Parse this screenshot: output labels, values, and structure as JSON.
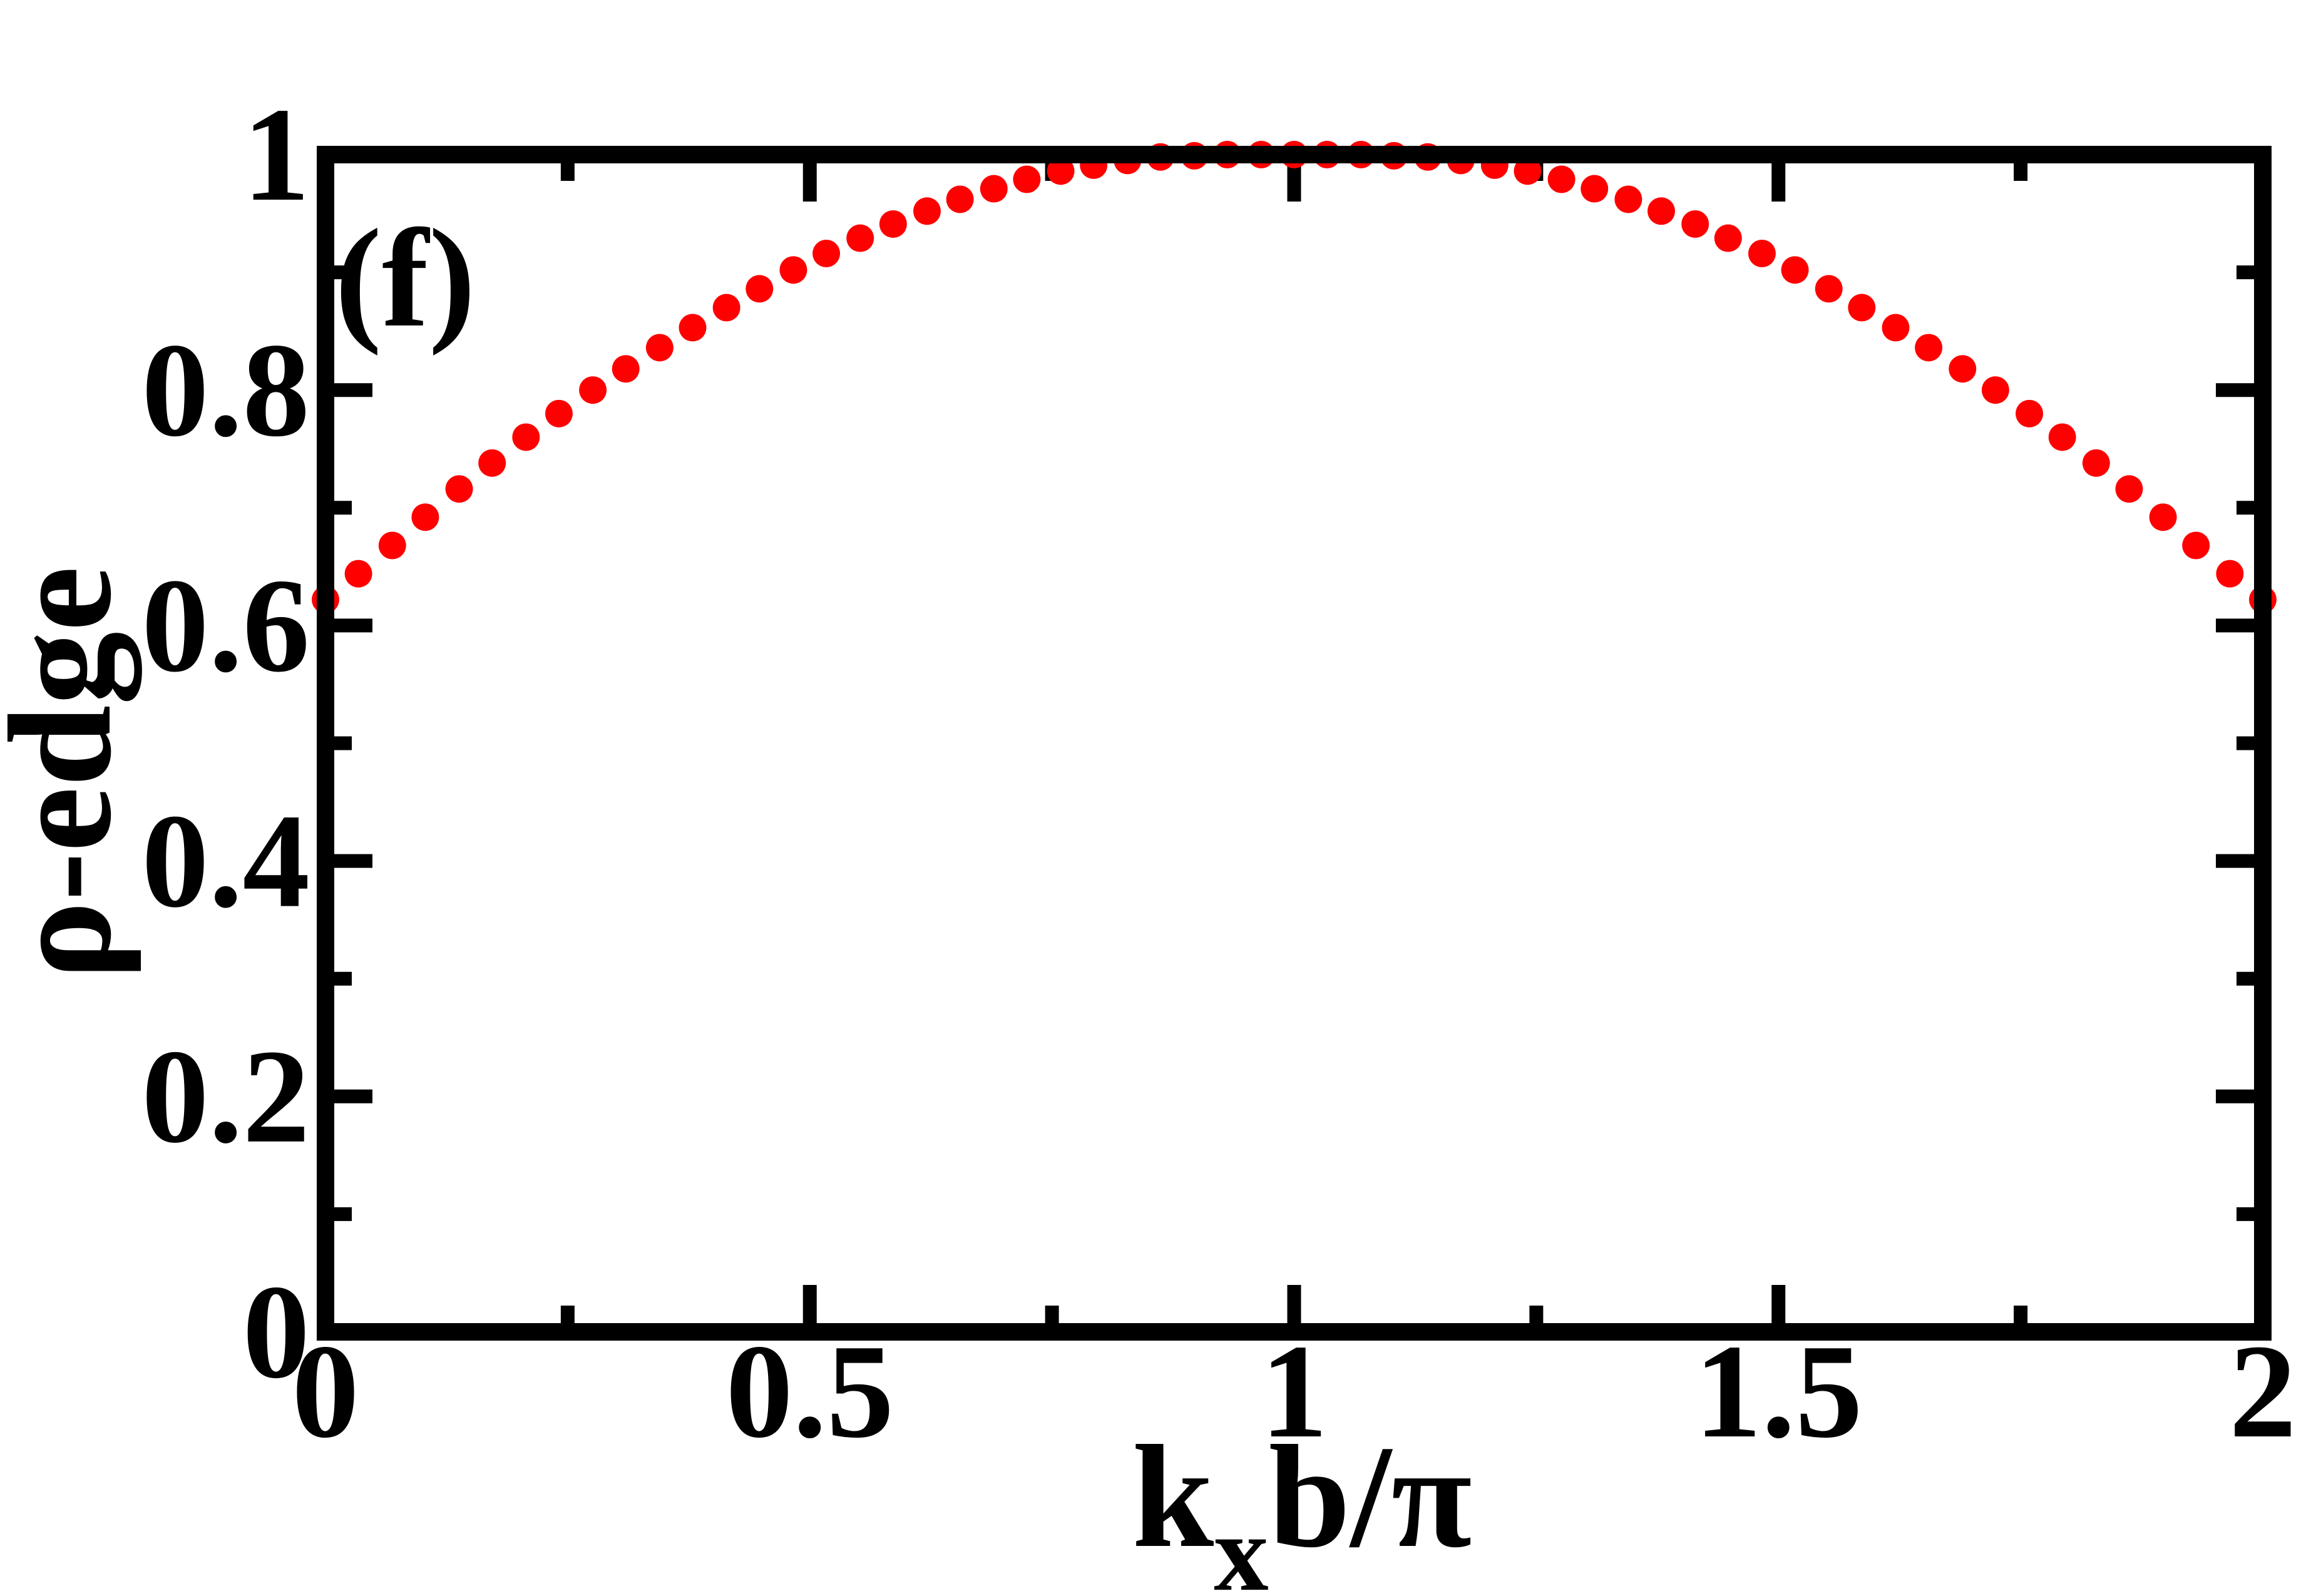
{
  "chart_data": {
    "type": "scatter",
    "panel_label": "(f)",
    "xlabel": {
      "main": "k",
      "sub": "x",
      "rest": "b/π"
    },
    "ylabel": "ρ-edge",
    "xlim": [
      0,
      2
    ],
    "ylim": [
      0,
      1
    ],
    "x_ticks": [
      {
        "value": 0,
        "label": "0"
      },
      {
        "value": 0.5,
        "label": "0.5"
      },
      {
        "value": 1,
        "label": "1"
      },
      {
        "value": 1.5,
        "label": "1.5"
      },
      {
        "value": 2,
        "label": "2"
      }
    ],
    "x_minor_ticks": [
      0.25,
      0.75,
      1.25,
      1.75
    ],
    "y_ticks": [
      {
        "value": 0,
        "label": "0"
      },
      {
        "value": 0.2,
        "label": "0.2"
      },
      {
        "value": 0.4,
        "label": "0.4"
      },
      {
        "value": 0.6,
        "label": "0.6"
      },
      {
        "value": 0.8,
        "label": "0.8"
      },
      {
        "value": 1,
        "label": "1"
      }
    ],
    "y_minor_ticks": [
      0.1,
      0.3,
      0.5,
      0.7,
      0.9
    ],
    "grid": false,
    "series": [
      {
        "color": "#ff0000",
        "marker": "circle",
        "x": [
          0,
          0.034,
          0.069,
          0.103,
          0.138,
          0.172,
          0.207,
          0.241,
          0.276,
          0.31,
          0.345,
          0.379,
          0.414,
          0.448,
          0.483,
          0.517,
          0.552,
          0.586,
          0.621,
          0.655,
          0.69,
          0.724,
          0.759,
          0.793,
          0.828,
          0.862,
          0.897,
          0.931,
          0.966,
          1.0,
          1.034,
          1.069,
          1.103,
          1.138,
          1.172,
          1.207,
          1.241,
          1.276,
          1.31,
          1.345,
          1.379,
          1.414,
          1.448,
          1.483,
          1.517,
          1.552,
          1.586,
          1.621,
          1.655,
          1.69,
          1.724,
          1.759,
          1.793,
          1.828,
          1.862,
          1.897,
          1.931,
          1.966,
          2.0
        ],
        "y": [
          0.622,
          0.644,
          0.668,
          0.692,
          0.716,
          0.738,
          0.76,
          0.78,
          0.8,
          0.818,
          0.836,
          0.853,
          0.87,
          0.886,
          0.902,
          0.916,
          0.929,
          0.941,
          0.952,
          0.962,
          0.971,
          0.979,
          0.986,
          0.991,
          0.995,
          0.998,
          0.999,
          1.0,
          1.0,
          1.0,
          1.0,
          1.0,
          0.999,
          0.998,
          0.995,
          0.991,
          0.986,
          0.979,
          0.971,
          0.962,
          0.952,
          0.941,
          0.929,
          0.916,
          0.902,
          0.886,
          0.87,
          0.853,
          0.836,
          0.818,
          0.8,
          0.78,
          0.76,
          0.738,
          0.716,
          0.692,
          0.668,
          0.644,
          0.622
        ]
      }
    ]
  }
}
